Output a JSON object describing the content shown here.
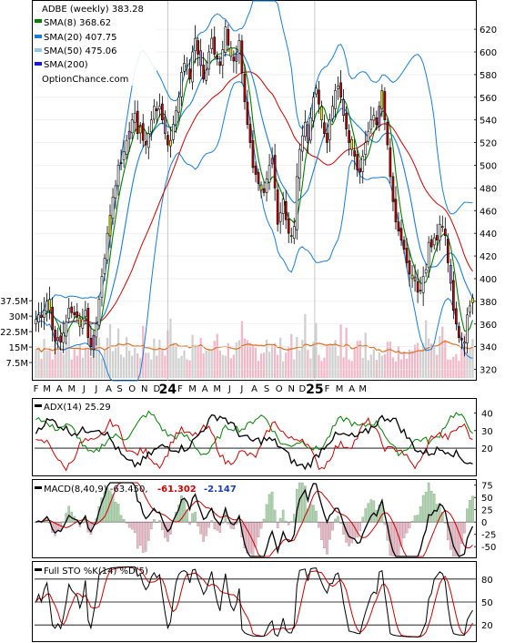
{
  "chart_data": {
    "type": "candlestick",
    "symbol_label": "ADBE (weekly) 383.28",
    "source": "OptionChance.com",
    "colors": {
      "sma8": "#008000",
      "sma20": "#1a7ed8",
      "sma50": "#8fc7ef",
      "sma200": "#1a1ad0",
      "sma_long": "#cc0000",
      "up_candle": "#ffffff",
      "down_candle": "#cc0000",
      "yellow_candle": "#f2f20a",
      "purple_candle": "#c080d0",
      "volume_up": "#d0d0d0",
      "volume_down": "#f0b8c8",
      "volume_avg": "#e07020",
      "adx": "#000000",
      "plus_di": "#008000",
      "minus_di": "#cc0000",
      "macd_line": "#000000",
      "signal_line": "#cc0000",
      "hist_up": "#a8d8a8",
      "hist_down": "#f0b8c8",
      "sto_k": "#000000",
      "sto_d": "#cc0000"
    },
    "legend": [
      {
        "label": "SMA(8) 368.62",
        "color": "#008000"
      },
      {
        "label": "SMA(20) 407.75",
        "color": "#1a7ed8"
      },
      {
        "label": "SMA(50) 475.06",
        "color": "#8fc7ef"
      },
      {
        "label": "SMA(200)",
        "color": "#1a1ad0"
      }
    ],
    "price_axis": {
      "min": 310,
      "max": 645,
      "ticks": [
        320,
        340,
        360,
        380,
        400,
        420,
        440,
        460,
        480,
        500,
        520,
        540,
        560,
        580,
        600,
        620
      ]
    },
    "volume_axis": {
      "max": 42,
      "ticks": [
        7.5,
        15,
        22.5,
        30,
        37.5
      ],
      "tick_labels": [
        "7.5M",
        "15M",
        "22.5M",
        "30M",
        "37.5M"
      ]
    },
    "x_axis": {
      "labels": [
        "F",
        "M",
        "A",
        "M",
        "J",
        "J",
        "A",
        "S",
        "O",
        "N",
        "D",
        "24",
        "F",
        "M",
        "A",
        "M",
        "J",
        "J",
        "A",
        "S",
        "O",
        "N",
        "D",
        "25",
        "F",
        "M",
        "A",
        "M"
      ],
      "bold_labels": [
        "24",
        "25"
      ],
      "label_weeks": [
        0.5,
        4.5,
        9,
        13.5,
        18,
        22.5,
        27,
        31,
        35.5,
        40,
        44.5,
        48.5,
        53,
        57.5,
        62,
        66.5,
        71,
        75.5,
        80,
        84.5,
        89,
        93.5,
        97.5,
        102,
        106.5,
        111,
        115.5,
        119.5
      ]
    },
    "closes": [
      364,
      368,
      366,
      372,
      380,
      372,
      355,
      345,
      348,
      344,
      352,
      362,
      374,
      370,
      368,
      366,
      358,
      364,
      372,
      348,
      340,
      350,
      360,
      382,
      402,
      418,
      440,
      456,
      472,
      482,
      500,
      502,
      512,
      522,
      530,
      540,
      546,
      528,
      534,
      522,
      518,
      528,
      540,
      552,
      548,
      552,
      540,
      528,
      518,
      522,
      536,
      548,
      560,
      582,
      590,
      588,
      576,
      600,
      612,
      598,
      588,
      576,
      584,
      600,
      612,
      598,
      594,
      588,
      602,
      622,
      606,
      596,
      592,
      598,
      610,
      582,
      556,
      536,
      520,
      498,
      492,
      484,
      478,
      476,
      488,
      500,
      506,
      480,
      448,
      458,
      470,
      452,
      440,
      438,
      446,
      490,
      514,
      526,
      538,
      520,
      542,
      560,
      568,
      554,
      540,
      528,
      520,
      540,
      552,
      566,
      570,
      560,
      544,
      532,
      520,
      514,
      508,
      496,
      494,
      508,
      520,
      530,
      540,
      544,
      536,
      552,
      566,
      540,
      518,
      490,
      468,
      450,
      442,
      434,
      426,
      414,
      404,
      400,
      398,
      388,
      390,
      402,
      408,
      432,
      428,
      436,
      434,
      448,
      446,
      438,
      414,
      396,
      372,
      360,
      348,
      346,
      344,
      368,
      376,
      383
    ],
    "indicator_series": {
      "adx": {
        "label": "ADX(14) 25.29",
        "axis_ticks": [
          20,
          30,
          40
        ]
      },
      "macd": {
        "label": "MACD(8,40,9) -63.450,",
        "values": [
          "-61.302",
          "-2.147"
        ],
        "axis_ticks": [
          75,
          50,
          25,
          0,
          -25,
          -50
        ]
      },
      "sto": {
        "label": "Full STO %K(14) %D(5)",
        "axis_ticks": [
          80,
          50,
          20
        ]
      }
    }
  }
}
